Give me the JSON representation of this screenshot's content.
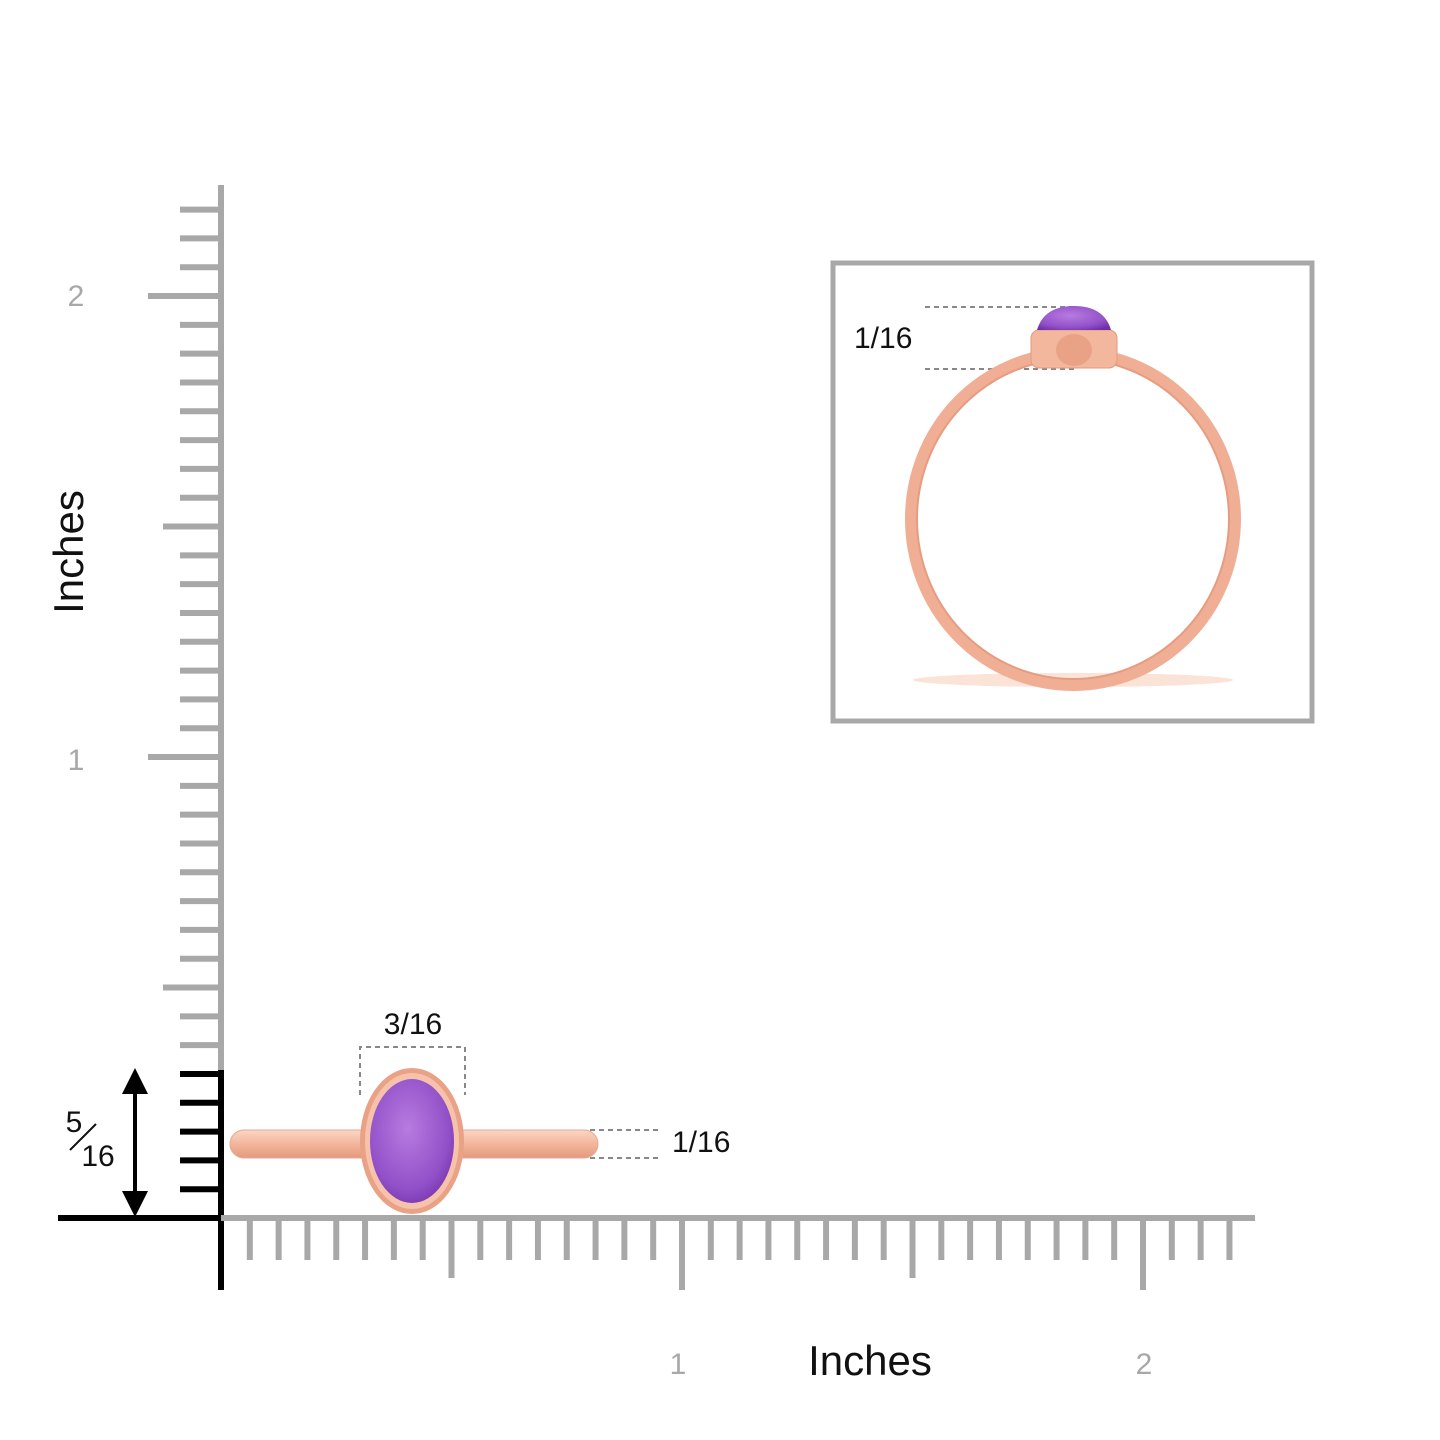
{
  "ruler": {
    "y_labels": [
      "2",
      "1"
    ],
    "y_title": "Inches",
    "x_labels": [
      "1",
      "2"
    ],
    "x_title": "Inches"
  },
  "side_view": {
    "width": "3/16",
    "band": "1/16",
    "height": {
      "numerator": "5",
      "denominator": "16"
    }
  },
  "inset": {
    "height": "1/16"
  }
}
